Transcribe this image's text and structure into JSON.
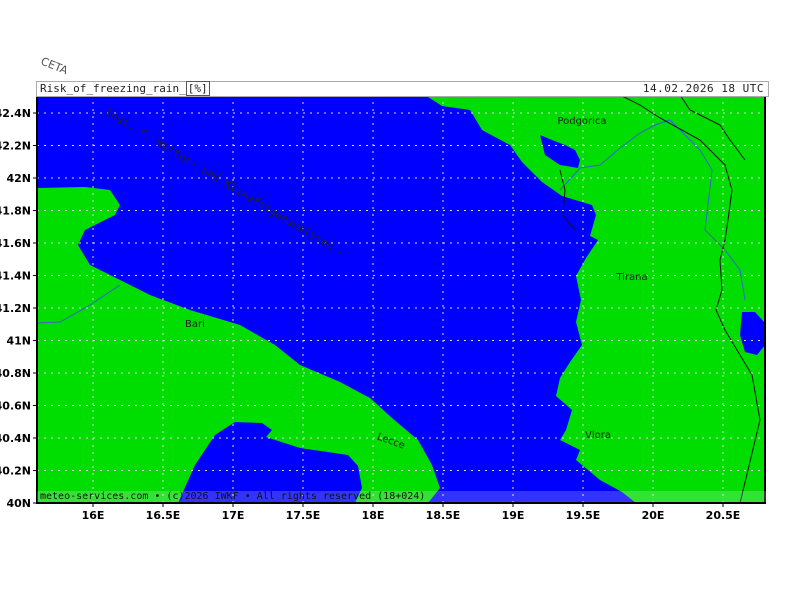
{
  "header": {
    "title": "Risk_of_freezing_rain_",
    "unit": "[%]",
    "valid_time": "14.02.2026  18 UTC",
    "logo": "CETA"
  },
  "watermark": "Inst. f. Wetter- und Klimafolgenanalysen -",
  "footer": "meteo-services.com • (c)2026 IWKF • All rights reserved (18+024)",
  "axes": {
    "lon_ticks": [
      "16E",
      "16.5E",
      "17E",
      "17.5E",
      "18E",
      "18.5E",
      "19E",
      "19.5E",
      "20E",
      "20.5E"
    ],
    "lat_ticks": [
      "40N",
      "40.2N",
      "40.4N",
      "40.6N",
      "40.8N",
      "41N",
      "41.2N",
      "41.4N",
      "41.6N",
      "41.8N",
      "42N",
      "42.2N",
      "42.4N"
    ]
  },
  "cities": [
    {
      "name": "Podgorica"
    },
    {
      "name": "Tirana"
    },
    {
      "name": "Vlora"
    },
    {
      "name": "Bari"
    },
    {
      "name": "Lecce"
    }
  ],
  "colors": {
    "sea": "#0000ff",
    "land": "#00dd00",
    "border": "#111111",
    "river": "#3366cc",
    "grid": "#dddddd"
  }
}
